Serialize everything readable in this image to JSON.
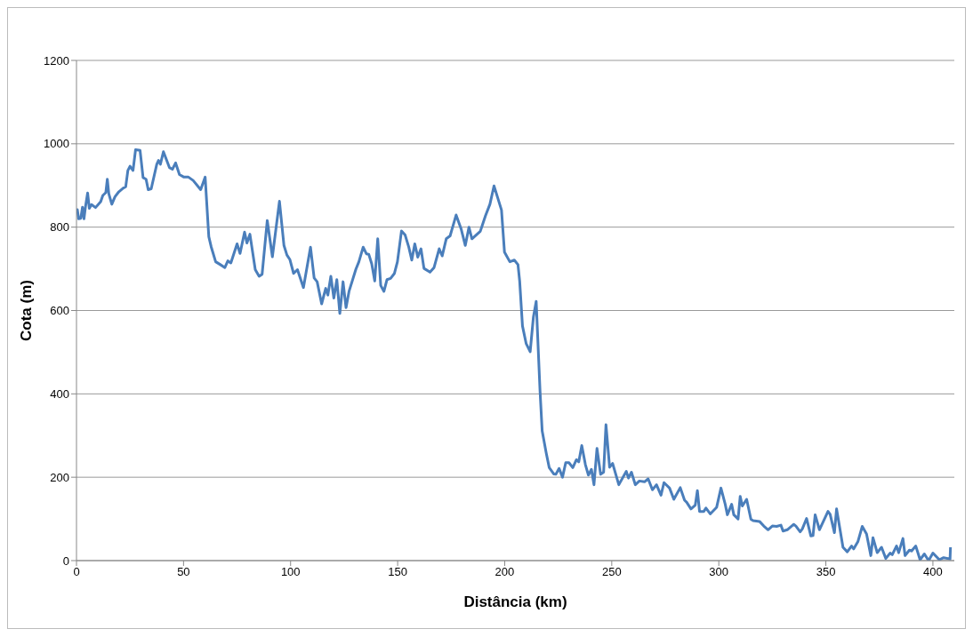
{
  "chart_data": {
    "type": "line",
    "xlabel": "Distância (km)",
    "ylabel": "Cota (m)",
    "x": [
      0,
      0.4,
      1,
      2,
      2.8,
      3.5,
      4.2,
      5.2,
      6,
      7,
      8.9,
      11.3,
      12.3,
      13.7,
      14.4,
      15.1,
      16.5,
      18,
      19.8,
      21.9,
      23,
      24,
      25,
      26.4,
      27.6,
      29.7,
      31.1,
      32.5,
      33.5,
      34.9,
      37.5,
      38.3,
      39.2,
      40.6,
      43.4,
      44.8,
      46.3,
      48.1,
      50.2,
      52.3,
      54.5,
      58,
      60.1,
      61.8,
      62.9,
      65,
      67.2,
      69.3,
      70.7,
      72.1,
      75,
      76.4,
      78.5,
      79.6,
      81,
      83.5,
      85.3,
      86.7,
      89.1,
      91.5,
      94.8,
      96.9,
      98.3,
      99.7,
      101.4,
      103.2,
      106,
      109.3,
      111,
      112.4,
      114.5,
      116.4,
      117.4,
      118.8,
      120.2,
      121.6,
      123,
      124.5,
      125.9,
      127.3,
      130.5,
      131.9,
      133.9,
      135.4,
      136.5,
      137.9,
      139.3,
      140.7,
      142.1,
      143.6,
      145,
      146.7,
      148.5,
      149.9,
      151.8,
      153.5,
      155.2,
      156.6,
      158,
      159.4,
      160.9,
      162.3,
      165.1,
      167,
      169.4,
      170.8,
      172.7,
      174.5,
      177.3,
      179.7,
      181.6,
      183.3,
      184.7,
      188.6,
      191,
      193.1,
      195,
      196.7,
      198.5,
      199.9,
      202.4,
      204.5,
      206.2,
      207,
      208.3,
      210,
      211.9,
      213.4,
      214.7,
      216.5,
      217.5,
      219.4,
      220.8,
      222.9,
      223.9,
      225.4,
      227,
      228.5,
      230,
      231.8,
      233.5,
      234.6,
      236,
      237.7,
      239.1,
      240.5,
      241.7,
      243.1,
      244.8,
      246.2,
      247.3,
      249,
      250.4,
      253.3,
      256.8,
      257.8,
      259.2,
      261,
      262.9,
      265.3,
      267,
      269,
      270.9,
      273,
      274.4,
      277,
      279,
      282,
      284,
      285,
      287,
      289,
      290,
      291,
      293,
      294,
      296,
      299,
      301,
      303,
      304,
      306,
      307,
      309,
      310,
      311,
      313,
      315,
      316,
      319,
      321,
      323,
      325,
      327,
      329,
      330,
      332,
      335,
      336,
      338,
      339,
      341,
      343,
      344,
      345,
      347,
      351,
      352,
      354,
      355,
      358,
      360,
      362,
      363,
      365,
      367,
      369,
      371,
      372,
      374,
      376,
      378,
      380,
      381,
      383,
      384,
      386,
      387,
      389,
      390,
      392,
      394,
      396,
      398,
      400,
      403,
      405,
      408,
      408.2
    ],
    "series": [
      {
        "color": "#4a7ebb",
        "values": [
          835,
          842,
          820,
          821,
          848,
          820,
          849,
          882,
          845,
          854,
          847,
          861,
          876,
          883,
          915,
          880,
          855,
          873,
          885,
          894,
          897,
          936,
          946,
          936,
          986,
          984,
          919,
          915,
          890,
          892,
          951,
          960,
          951,
          981,
          943,
          939,
          954,
          926,
          920,
          920,
          912,
          890,
          920,
          777,
          753,
          717,
          710,
          703,
          719,
          714,
          760,
          737,
          788,
          762,
          783,
          698,
          682,
          687,
          816,
          729,
          862,
          756,
          733,
          722,
          689,
          698,
          655,
          752,
          678,
          669,
          616,
          653,
          637,
          682,
          630,
          674,
          593,
          669,
          607,
          646,
          699,
          717,
          752,
          736,
          735,
          712,
          671,
          772,
          660,
          646,
          674,
          677,
          689,
          717,
          791,
          781,
          752,
          721,
          760,
          728,
          748,
          701,
          692,
          703,
          748,
          731,
          772,
          779,
          829,
          795,
          756,
          800,
          772,
          790,
          827,
          855,
          899,
          871,
          841,
          740,
          717,
          721,
          710,
          670,
          563,
          521,
          501,
          584,
          622,
          407,
          311,
          258,
          223,
          208,
          207,
          221,
          200,
          235,
          235,
          223,
          242,
          237,
          276,
          230,
          205,
          219,
          182,
          269,
          207,
          212,
          326,
          224,
          233,
          182,
          214,
          198,
          212,
          182,
          191,
          189,
          196,
          170,
          182,
          157,
          187,
          174,
          147,
          175,
          145,
          140,
          124,
          133,
          168,
          118,
          118,
          126,
          112,
          128,
          174,
          135,
          110,
          135,
          110,
          100,
          154,
          131,
          147,
          99,
          96,
          94,
          83,
          74,
          83,
          82,
          85,
          71,
          74,
          87,
          83,
          69,
          76,
          101,
          59,
          60,
          110,
          74,
          118,
          111,
          67,
          124,
          32,
          21,
          35,
          28,
          46,
          82,
          64,
          12,
          55,
          19,
          32,
          5,
          18,
          14,
          35,
          19,
          53,
          12,
          25,
          23,
          35,
          2,
          16,
          0,
          18,
          2,
          7,
          4,
          32
        ]
      }
    ],
    "xlim": [
      0,
      410
    ],
    "xticks": [
      0,
      50,
      100,
      150,
      200,
      250,
      300,
      350,
      400
    ],
    "ylim": [
      0,
      1200
    ],
    "yticks": [
      0,
      200,
      400,
      600,
      800,
      1000,
      1200
    ],
    "grid": "y",
    "legend": false,
    "marker": "none",
    "line_style": "solid"
  }
}
